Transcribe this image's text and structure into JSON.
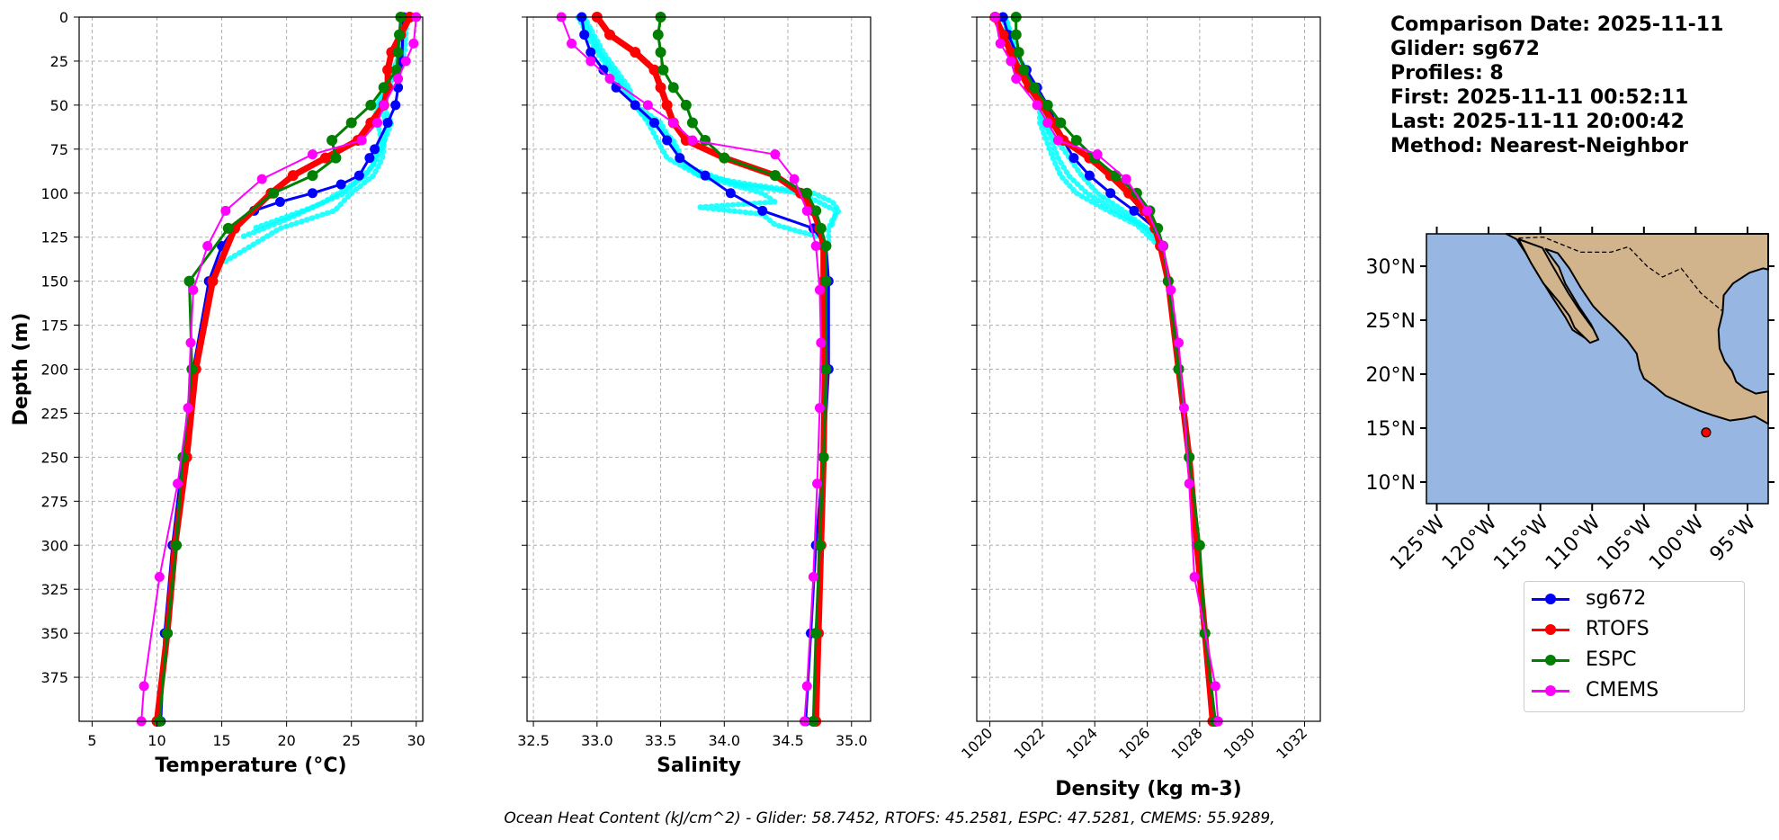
{
  "info": {
    "lines": [
      "Comparison Date: 2025-11-11",
      "",
      "Glider: sg672",
      "Profiles: 8",
      "First: 2025-11-11 00:52:11",
      "Last: 2025-11-11 20:00:42",
      "Method: Nearest-Neighbor"
    ]
  },
  "footer": "Ocean Heat Content (kJ/cm^2) - Glider: 58.7452,  RTOFS: 45.2581,  ESPC: 47.5281,  CMEMS: 55.9289,",
  "colors": {
    "sg672": "#0000ff",
    "RTOFS": "#ff0000",
    "ESPC": "#008000",
    "CMEMS": "#ff00ff",
    "glider_raw": "#00ffff",
    "ocean": "#97b6e1",
    "land": "#d2b48c"
  },
  "legend": {
    "items": [
      {
        "label": "sg672",
        "color": "#0000ff"
      },
      {
        "label": "RTOFS",
        "color": "#ff0000"
      },
      {
        "label": "ESPC",
        "color": "#008000"
      },
      {
        "label": "CMEMS",
        "color": "#ff00ff"
      }
    ]
  },
  "chart_data": [
    {
      "type": "line",
      "xlabel": "Temperature (°C)",
      "ylabel": "Depth (m)",
      "xlim": [
        4,
        30.5
      ],
      "ylim": [
        400,
        0
      ],
      "xticks": [
        "5",
        "10",
        "15",
        "20",
        "25",
        "30"
      ],
      "yticks": [
        "0",
        "25",
        "50",
        "75",
        "100",
        "125",
        "150",
        "175",
        "200",
        "225",
        "250",
        "275",
        "300",
        "325",
        "350",
        "375"
      ],
      "grid": true,
      "series": [
        {
          "name": "sg672",
          "depth": [
            0,
            25,
            40,
            50,
            60,
            75,
            80,
            90,
            95,
            100,
            105,
            110,
            120,
            130,
            150,
            200,
            250,
            300,
            350,
            400
          ],
          "values": [
            29.0,
            28.9,
            28.6,
            28.4,
            27.8,
            26.8,
            26.4,
            25.6,
            24.2,
            22.0,
            19.5,
            17.5,
            16.0,
            15.0,
            14.0,
            12.8,
            12.0,
            11.2,
            10.6,
            10.3
          ]
        },
        {
          "name": "RTOFS",
          "depth": [
            0,
            10,
            20,
            30,
            40,
            50,
            60,
            70,
            80,
            90,
            100,
            120,
            150,
            200,
            250,
            300,
            350,
            400
          ],
          "values": [
            29.5,
            28.8,
            28.1,
            27.8,
            27.8,
            27.5,
            26.5,
            25.5,
            23.0,
            20.5,
            18.8,
            16.0,
            14.3,
            13.0,
            12.3,
            11.4,
            10.8,
            10.0
          ]
        },
        {
          "name": "ESPC",
          "depth": [
            0,
            10,
            20,
            30,
            40,
            50,
            60,
            70,
            80,
            90,
            100,
            120,
            150,
            200,
            250,
            300,
            350,
            400
          ],
          "values": [
            28.8,
            28.7,
            28.6,
            28.5,
            27.5,
            26.5,
            25.0,
            23.5,
            23.8,
            22.0,
            19.0,
            15.5,
            12.5,
            12.7,
            12.0,
            11.5,
            10.8,
            10.2
          ]
        },
        {
          "name": "CMEMS",
          "depth": [
            0,
            15,
            25,
            35,
            50,
            60,
            70,
            78,
            92,
            110,
            130,
            155,
            185,
            222,
            265,
            318,
            380,
            400
          ],
          "values": [
            30.0,
            29.8,
            29.2,
            28.6,
            27.5,
            27.0,
            25.8,
            22.0,
            18.1,
            15.3,
            13.9,
            12.8,
            12.6,
            12.4,
            11.6,
            10.2,
            9.0,
            8.8
          ]
        }
      ],
      "glider_raw": [
        {
          "depth": [
            0,
            20,
            40,
            50,
            60,
            80,
            90,
            100,
            110,
            120,
            140
          ],
          "values": [
            29.0,
            28.8,
            27.6,
            27.1,
            27.7,
            27.4,
            26.7,
            25.0,
            23.7,
            19.5,
            15.0
          ]
        },
        {
          "depth": [
            0,
            20,
            40,
            50,
            60,
            80,
            90,
            100,
            105,
            115,
            125
          ],
          "values": [
            29.3,
            29.1,
            27.9,
            27.4,
            28.1,
            27.0,
            26.1,
            24.0,
            22.9,
            20.0,
            16.5
          ]
        },
        {
          "depth": [
            0,
            30,
            45,
            55,
            70,
            85,
            100,
            108,
            120
          ],
          "values": [
            29.1,
            28.7,
            27.2,
            26.9,
            27.3,
            26.6,
            24.5,
            22.0,
            17.5
          ]
        }
      ]
    },
    {
      "type": "line",
      "xlabel": "Salinity",
      "ylabel": "",
      "xlim": [
        32.45,
        35.15
      ],
      "ylim": [
        400,
        0
      ],
      "xticks": [
        "32.5",
        "33.0",
        "33.5",
        "34.0",
        "34.5",
        "35.0"
      ],
      "grid": true,
      "series": [
        {
          "name": "sg672",
          "depth": [
            0,
            10,
            20,
            30,
            40,
            50,
            60,
            70,
            80,
            90,
            100,
            110,
            120,
            130,
            150,
            200,
            250,
            300,
            350,
            400
          ],
          "values": [
            32.88,
            32.9,
            32.95,
            33.05,
            33.15,
            33.3,
            33.45,
            33.55,
            33.65,
            33.85,
            34.05,
            34.3,
            34.7,
            34.8,
            34.82,
            34.82,
            34.78,
            34.72,
            34.68,
            34.64
          ]
        },
        {
          "name": "RTOFS",
          "depth": [
            0,
            10,
            20,
            30,
            40,
            50,
            60,
            70,
            80,
            90,
            100,
            110,
            120,
            130,
            150,
            200,
            250,
            300,
            350,
            400
          ],
          "values": [
            33.0,
            33.1,
            33.3,
            33.45,
            33.5,
            33.55,
            33.6,
            33.7,
            34.0,
            34.4,
            34.6,
            34.7,
            34.75,
            34.78,
            34.78,
            34.79,
            34.78,
            34.76,
            34.74,
            34.72
          ]
        },
        {
          "name": "ESPC",
          "depth": [
            0,
            10,
            20,
            30,
            40,
            50,
            60,
            70,
            80,
            90,
            100,
            110,
            120,
            130,
            150,
            200,
            250,
            300,
            350,
            400
          ],
          "values": [
            33.5,
            33.48,
            33.5,
            33.52,
            33.6,
            33.7,
            33.75,
            33.85,
            34.0,
            34.4,
            34.65,
            34.72,
            34.76,
            34.8,
            34.8,
            34.8,
            34.78,
            34.75,
            34.72,
            34.7
          ]
        },
        {
          "name": "CMEMS",
          "depth": [
            0,
            15,
            25,
            35,
            50,
            60,
            70,
            78,
            92,
            110,
            130,
            155,
            185,
            222,
            265,
            318,
            380,
            400
          ],
          "values": [
            32.72,
            32.8,
            32.95,
            33.1,
            33.4,
            33.6,
            33.75,
            34.4,
            34.55,
            34.65,
            34.72,
            34.75,
            34.76,
            34.75,
            34.73,
            34.7,
            34.65,
            34.63
          ]
        }
      ],
      "glider_raw": [
        {
          "depth": [
            0,
            20,
            40,
            50,
            60,
            80,
            90,
            95,
            100,
            105,
            110,
            115,
            120,
            130
          ],
          "values": [
            32.85,
            33.0,
            33.2,
            33.3,
            33.5,
            33.65,
            33.8,
            34.2,
            34.7,
            34.85,
            34.9,
            34.85,
            34.82,
            34.82
          ]
        },
        {
          "depth": [
            0,
            20,
            40,
            50,
            60,
            80,
            90,
            100,
            105,
            108,
            112,
            118,
            125
          ],
          "values": [
            32.9,
            33.05,
            33.25,
            33.3,
            33.4,
            33.55,
            33.8,
            34.3,
            34.4,
            33.8,
            34.3,
            34.4,
            34.75
          ]
        },
        {
          "depth": [
            0,
            20,
            40,
            55,
            70,
            85,
            95,
            100,
            110,
            120
          ],
          "values": [
            32.88,
            33.02,
            33.22,
            33.35,
            33.6,
            33.7,
            34.1,
            34.6,
            34.88,
            34.84
          ]
        }
      ]
    },
    {
      "type": "line",
      "xlabel": "Density (kg m-3)",
      "ylabel": "",
      "xlim": [
        1019.5,
        1032.6
      ],
      "ylim": [
        400,
        0
      ],
      "xticks": [
        "1020",
        "1022",
        "1024",
        "1026",
        "1028",
        "1030",
        "1032"
      ],
      "grid": true,
      "series": [
        {
          "name": "sg672",
          "depth": [
            0,
            10,
            20,
            30,
            40,
            50,
            60,
            70,
            80,
            90,
            100,
            110,
            120,
            130,
            150,
            200,
            250,
            300,
            350,
            400
          ],
          "values": [
            1020.5,
            1020.7,
            1021.0,
            1021.4,
            1021.8,
            1022.2,
            1022.5,
            1022.8,
            1023.2,
            1023.8,
            1024.6,
            1025.5,
            1026.3,
            1026.6,
            1026.8,
            1027.2,
            1027.6,
            1027.9,
            1028.2,
            1028.5
          ]
        },
        {
          "name": "RTOFS",
          "depth": [
            0,
            10,
            20,
            30,
            40,
            50,
            60,
            70,
            80,
            90,
            100,
            110,
            120,
            130,
            150,
            200,
            250,
            300,
            350,
            400
          ],
          "values": [
            1020.2,
            1020.5,
            1020.8,
            1021.1,
            1021.5,
            1022.0,
            1022.4,
            1022.8,
            1023.8,
            1024.6,
            1025.3,
            1025.9,
            1026.3,
            1026.5,
            1026.8,
            1027.2,
            1027.6,
            1027.9,
            1028.2,
            1028.5
          ]
        },
        {
          "name": "ESPC",
          "depth": [
            0,
            10,
            20,
            30,
            40,
            50,
            60,
            70,
            80,
            90,
            100,
            110,
            120,
            130,
            150,
            200,
            250,
            300,
            350,
            400
          ],
          "values": [
            1021.0,
            1021.0,
            1021.1,
            1021.3,
            1021.7,
            1022.2,
            1022.7,
            1023.3,
            1024.0,
            1024.8,
            1025.6,
            1026.1,
            1026.4,
            1026.6,
            1026.8,
            1027.2,
            1027.6,
            1028.0,
            1028.2,
            1028.6
          ]
        },
        {
          "name": "CMEMS",
          "depth": [
            0,
            15,
            25,
            35,
            50,
            60,
            70,
            78,
            92,
            110,
            130,
            155,
            185,
            222,
            265,
            318,
            380,
            400
          ],
          "values": [
            1020.2,
            1020.4,
            1020.8,
            1021.0,
            1021.8,
            1022.2,
            1022.6,
            1024.1,
            1025.2,
            1026.0,
            1026.6,
            1026.9,
            1027.2,
            1027.4,
            1027.6,
            1027.8,
            1028.6,
            1028.7
          ]
        }
      ],
      "glider_raw": [
        {
          "depth": [
            0,
            20,
            40,
            50,
            60,
            80,
            90,
            100,
            110,
            120,
            130
          ],
          "values": [
            1020.6,
            1021.0,
            1021.7,
            1022.0,
            1022.1,
            1022.6,
            1023.0,
            1023.7,
            1024.8,
            1026.0,
            1026.5
          ]
        },
        {
          "depth": [
            0,
            20,
            40,
            50,
            60,
            80,
            90,
            100,
            110,
            118,
            128
          ],
          "values": [
            1020.5,
            1020.9,
            1021.6,
            1021.9,
            1021.9,
            1022.4,
            1022.7,
            1023.3,
            1024.5,
            1025.6,
            1026.3
          ]
        },
        {
          "depth": [
            0,
            30,
            45,
            60,
            75,
            90,
            100,
            110,
            125
          ],
          "values": [
            1020.6,
            1021.2,
            1021.9,
            1022.0,
            1022.8,
            1023.5,
            1024.1,
            1025.1,
            1026.4
          ]
        }
      ]
    }
  ],
  "map": {
    "lat_ticks": [
      "30°N",
      "25°N",
      "20°N",
      "15°N",
      "10°N"
    ],
    "lon_ticks": [
      "125°W",
      "120°W",
      "115°W",
      "110°W",
      "105°W",
      "100°W",
      "95°W"
    ],
    "extent": {
      "lon": [
        -126,
        -93
      ],
      "lat": [
        8,
        33
      ]
    },
    "glider_location": {
      "lon": -99,
      "lat": 14.6
    }
  }
}
